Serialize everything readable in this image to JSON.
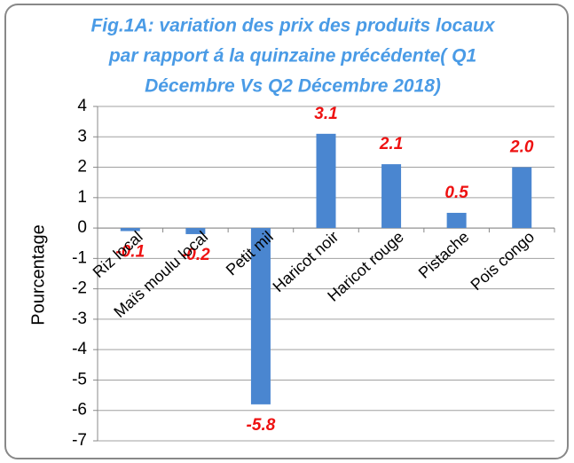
{
  "chart_data": {
    "type": "bar",
    "title": [
      "Fig.1A: variation des prix des produits locaux",
      "par rapport á la quinzaine précédente( Q1",
      "Décembre Vs Q2 Décembre 2018)"
    ],
    "y_label": "Pourcentage",
    "categories": [
      "Riz local",
      "Maïs moulu  local",
      "Petit mil",
      "Haricot noir",
      "Haricot rouge",
      "Pistache",
      "Pois congo"
    ],
    "values": [
      -0.1,
      -0.2,
      -5.8,
      3.1,
      2.1,
      0.5,
      2.0
    ],
    "value_labels": [
      "-0.1",
      "-0.2",
      "-5.8",
      "3.1",
      "2.1",
      "0.5",
      "2.0"
    ],
    "color": "#4a86d0",
    "label_color": "#ee1111",
    "ylim": [
      -7,
      4
    ],
    "yticks": [
      -7,
      -6,
      -5,
      -4,
      -3,
      -2,
      -1,
      0,
      1,
      2,
      3,
      4
    ],
    "grid": true
  }
}
